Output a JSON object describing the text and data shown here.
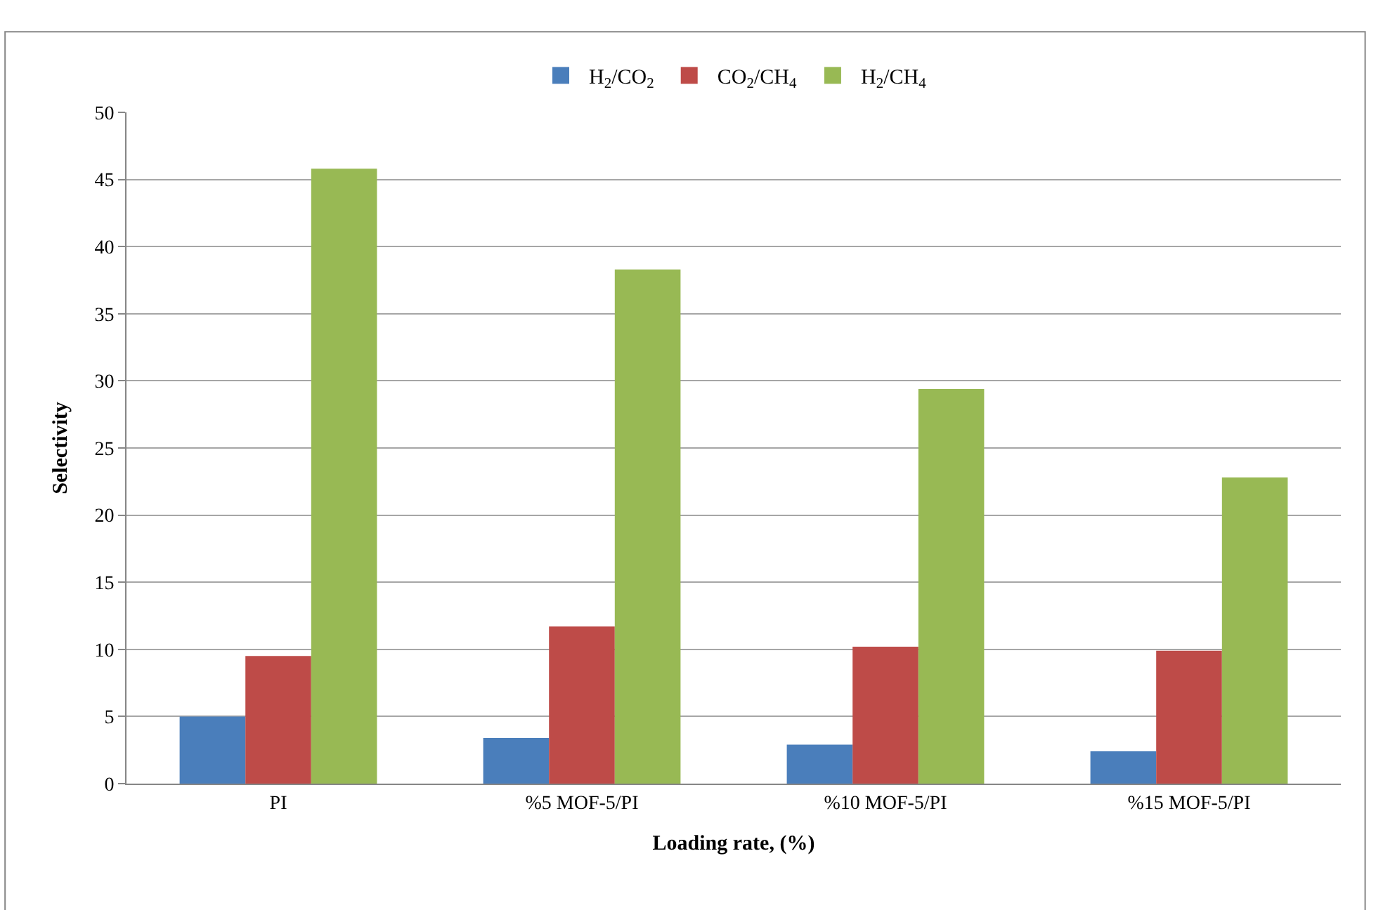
{
  "chart_data": {
    "type": "bar",
    "xlabel": "Loading rate, (%)",
    "ylabel": "Selectivity",
    "categories": [
      "PI",
      "%5 MOF-5/PI",
      "%10 MOF-5/PI",
      "%15 MOF-5/PI"
    ],
    "series": [
      {
        "name": "H$_{2}$/CO$_{2}$",
        "color": "#4a7ebb",
        "values": [
          5.0,
          3.4,
          2.9,
          2.4
        ]
      },
      {
        "name": "CO$_{2}$/CH$_{4}$",
        "color": "#be4b48",
        "values": [
          9.5,
          11.7,
          10.2,
          9.9
        ]
      },
      {
        "name": "H$_{2}$/CH$_{4}$",
        "color": "#98b954",
        "values": [
          45.8,
          38.3,
          29.4,
          22.8
        ]
      }
    ],
    "ylim": [
      0,
      50
    ],
    "yticks": [
      0,
      5,
      10,
      15,
      20,
      25,
      30,
      35,
      40,
      45,
      50
    ],
    "grid": "y",
    "legend": "top"
  }
}
